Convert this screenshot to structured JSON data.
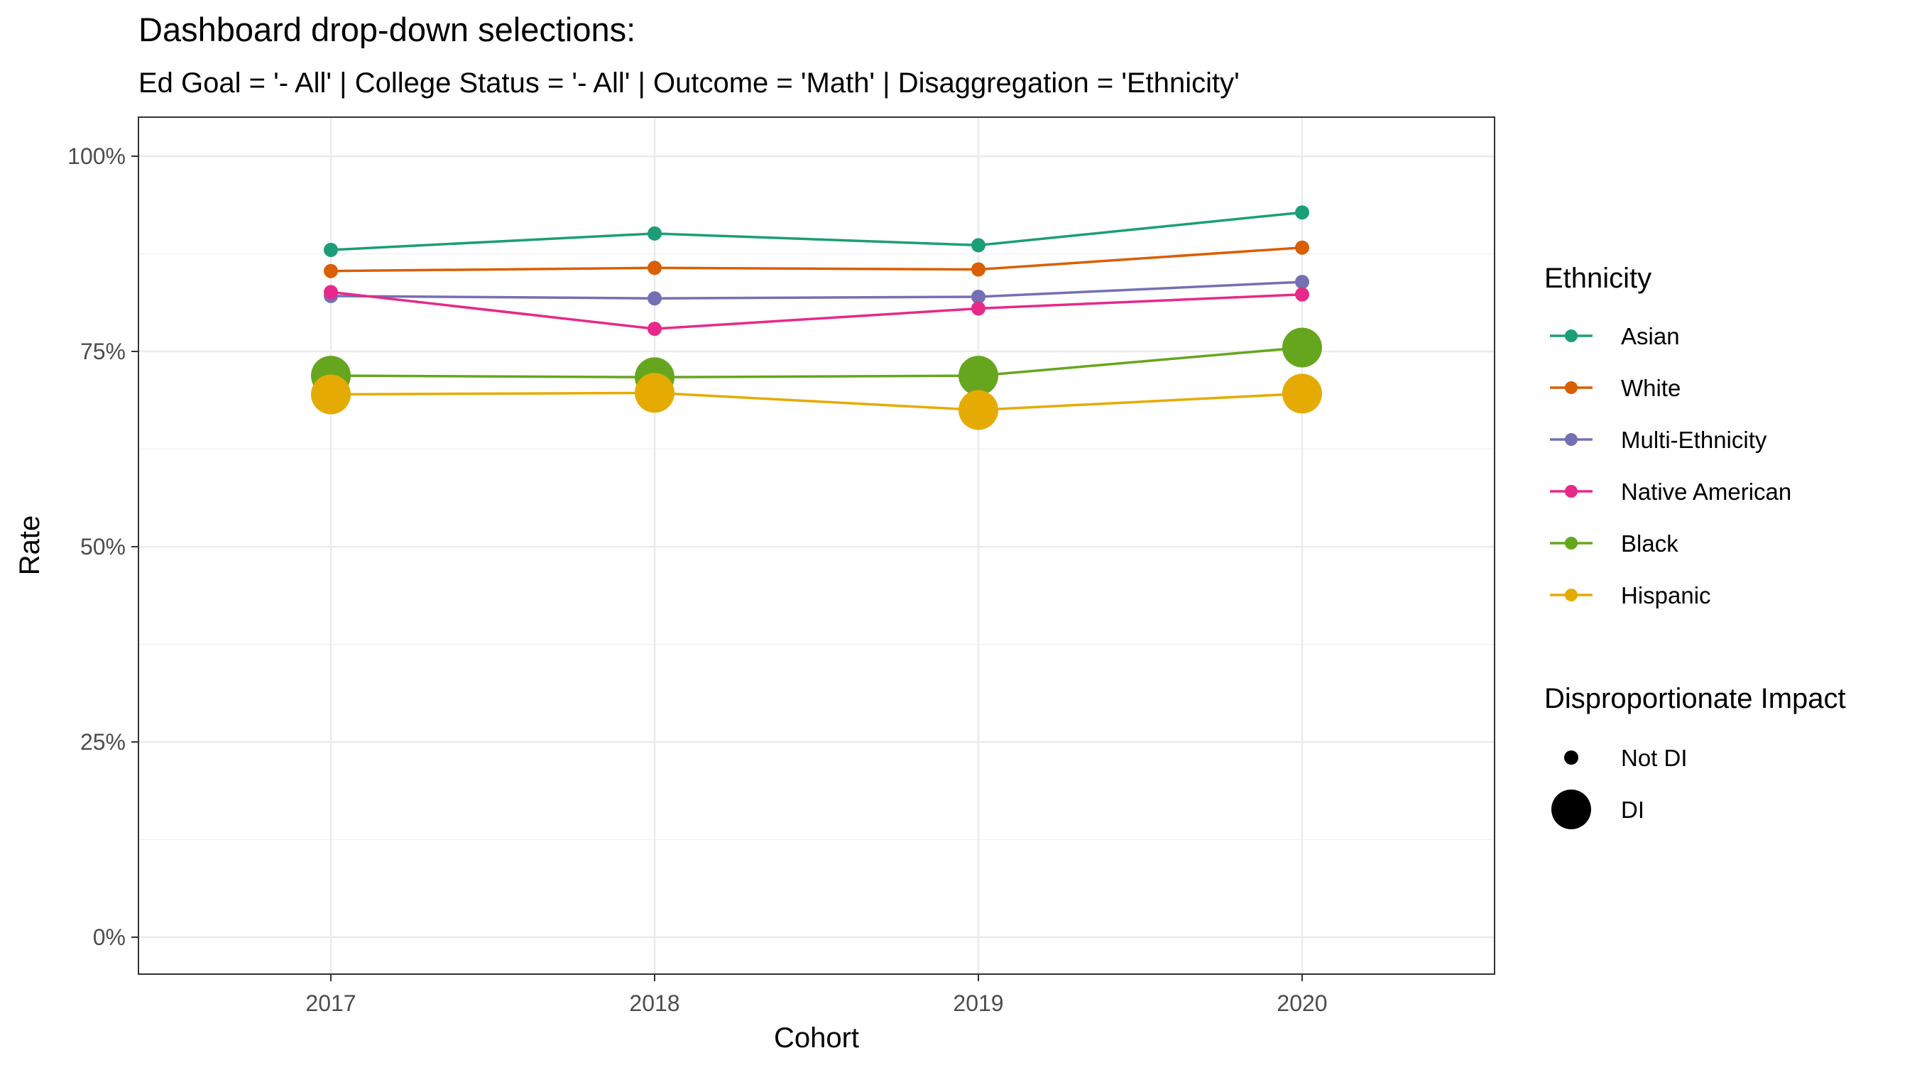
{
  "chart_data": {
    "type": "line",
    "title": "Dashboard drop-down selections:",
    "subtitle": "Ed Goal = '- All' | College Status = '- All' | Outcome = 'Math' | Disaggregation = 'Ethnicity'",
    "xlabel": "Cohort",
    "ylabel": "Rate",
    "categories": [
      "2017",
      "2018",
      "2019",
      "2020"
    ],
    "ylim": [
      0,
      1
    ],
    "y_ticks": [
      0,
      0.25,
      0.5,
      0.75,
      1.0
    ],
    "y_tick_labels": [
      "0%",
      "25%",
      "50%",
      "75%",
      "100%"
    ],
    "grid": true,
    "legend_position": "right",
    "series": [
      {
        "name": "Asian",
        "color": "#1b9e77",
        "values": [
          0.88,
          0.901,
          0.886,
          0.928
        ],
        "di": [
          false,
          false,
          false,
          false
        ]
      },
      {
        "name": "White",
        "color": "#d95f02",
        "values": [
          0.853,
          0.857,
          0.855,
          0.883
        ],
        "di": [
          false,
          false,
          false,
          false
        ]
      },
      {
        "name": "Multi-Ethnicity",
        "color": "#7570b3",
        "values": [
          0.821,
          0.818,
          0.82,
          0.839
        ],
        "di": [
          false,
          false,
          false,
          false
        ]
      },
      {
        "name": "Native American",
        "color": "#e7298a",
        "values": [
          0.826,
          0.779,
          0.805,
          0.823
        ],
        "di": [
          false,
          false,
          false,
          false
        ]
      },
      {
        "name": "Black",
        "color": "#66a61e",
        "values": [
          0.719,
          0.717,
          0.719,
          0.755
        ],
        "di": [
          true,
          true,
          true,
          true
        ]
      },
      {
        "name": "Hispanic",
        "color": "#e6ab02",
        "values": [
          0.695,
          0.697,
          0.675,
          0.696
        ],
        "di": [
          true,
          true,
          true,
          true
        ]
      }
    ],
    "legend": {
      "color_title": "Ethnicity",
      "size_title": "Disproportionate Impact",
      "size_entries": [
        {
          "label": "Not DI",
          "di": false
        },
        {
          "label": "DI",
          "di": true
        }
      ]
    }
  }
}
